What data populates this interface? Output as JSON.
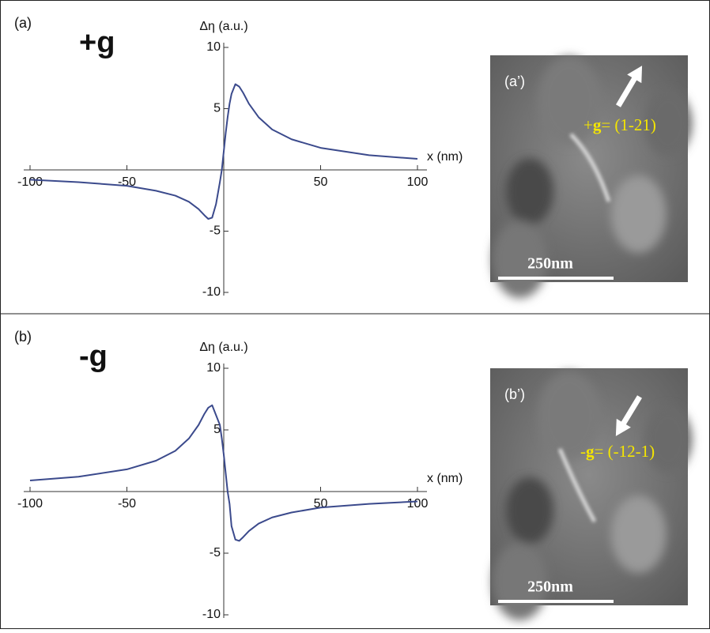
{
  "chart_data": [
    {
      "type": "line",
      "panel_label": "(a)",
      "sign_label": "+g",
      "xlabel": "x (nm)",
      "ylabel": "Δη (a.u.)",
      "xlim": [
        -100,
        100
      ],
      "ylim": [
        -10,
        10
      ],
      "xticks": [
        -100,
        -50,
        50,
        100
      ],
      "yticks": [
        -10,
        -5,
        5,
        10
      ],
      "series": [
        {
          "color": "#3b4a8c",
          "x": [
            -100,
            -75,
            -50,
            -35,
            -25,
            -18,
            -13,
            -10,
            -8,
            -6,
            -4,
            -2,
            -1,
            0,
            1,
            2,
            3,
            4,
            6,
            8,
            10,
            13,
            18,
            25,
            35,
            50,
            75,
            100
          ],
          "values": [
            -0.8,
            -1.0,
            -1.3,
            -1.7,
            -2.1,
            -2.6,
            -3.2,
            -3.7,
            -4.0,
            -3.9,
            -2.8,
            -1.0,
            0,
            1.5,
            3.0,
            4.3,
            5.4,
            6.2,
            7.0,
            6.8,
            6.3,
            5.4,
            4.3,
            3.3,
            2.5,
            1.8,
            1.2,
            0.9
          ]
        }
      ],
      "image": {
        "label": "(a’)",
        "sign": "+",
        "vector": "g",
        "index": "= (1-21)",
        "scale_bar": "250nm"
      }
    },
    {
      "type": "line",
      "panel_label": "(b)",
      "sign_label": "-g",
      "xlabel": "x (nm)",
      "ylabel": "Δη (a.u.)",
      "xlim": [
        -100,
        100
      ],
      "ylim": [
        -10,
        10
      ],
      "xticks": [
        -100,
        -50,
        50,
        100
      ],
      "yticks": [
        -10,
        -5,
        5,
        10
      ],
      "series": [
        {
          "color": "#3b4a8c",
          "x": [
            -100,
            -75,
            -50,
            -35,
            -25,
            -18,
            -13,
            -10,
            -8,
            -6,
            -4,
            -2,
            -1,
            0,
            1,
            2,
            3,
            4,
            6,
            8,
            10,
            13,
            18,
            25,
            35,
            50,
            75,
            100
          ],
          "values": [
            0.9,
            1.2,
            1.8,
            2.5,
            3.3,
            4.3,
            5.4,
            6.3,
            6.8,
            7.0,
            6.2,
            5.4,
            4.3,
            3.0,
            1.5,
            0,
            -1.0,
            -2.8,
            -3.9,
            -4.0,
            -3.7,
            -3.2,
            -2.6,
            -2.1,
            -1.7,
            -1.3,
            -1.0,
            -0.8
          ]
        }
      ],
      "image": {
        "label": "(b’)",
        "sign": "-",
        "vector": "g",
        "index": "= (-12-1)",
        "scale_bar": "250nm"
      }
    }
  ]
}
